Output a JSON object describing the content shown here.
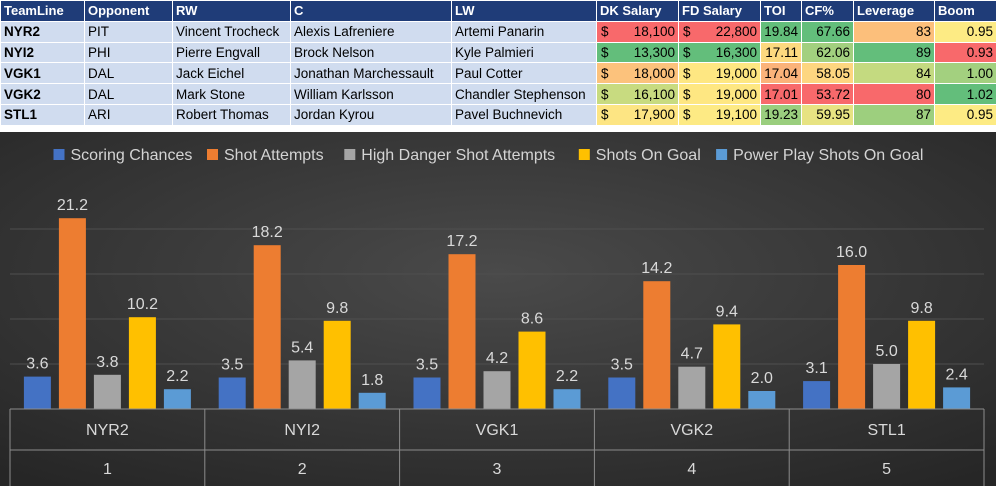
{
  "table": {
    "headers": [
      "TeamLine",
      "Opponent",
      "RW",
      "C",
      "LW",
      "DK Salary",
      "FD Salary",
      "TOI",
      "CF%",
      "Leverage",
      "Boom"
    ],
    "currency_symbol": "$",
    "rows": [
      {
        "teamline": "NYR2",
        "opponent": "PIT",
        "rw": "Vincent Trocheck",
        "c": "Alexis Lafreniere",
        "lw": "Artemi Panarin",
        "dk": "18,100",
        "fd": "22,800",
        "toi": "19.84",
        "cf": "67.66",
        "leverage": "83",
        "boom": "0.95"
      },
      {
        "teamline": "NYI2",
        "opponent": "PHI",
        "rw": "Pierre Engvall",
        "c": "Brock Nelson",
        "lw": "Kyle Palmieri",
        "dk": "13,300",
        "fd": "16,300",
        "toi": "17.11",
        "cf": "62.06",
        "leverage": "89",
        "boom": "0.93"
      },
      {
        "teamline": "VGK1",
        "opponent": "DAL",
        "rw": "Jack Eichel",
        "c": "Jonathan Marchessault",
        "lw": "Paul Cotter",
        "dk": "18,000",
        "fd": "19,000",
        "toi": "17.04",
        "cf": "58.05",
        "leverage": "84",
        "boom": "1.00"
      },
      {
        "teamline": "VGK2",
        "opponent": "DAL",
        "rw": "Mark Stone",
        "c": "William Karlsson",
        "lw": "Chandler Stephenson",
        "dk": "16,100",
        "fd": "19,000",
        "toi": "17.01",
        "cf": "53.72",
        "leverage": "80",
        "boom": "1.02"
      },
      {
        "teamline": "STL1",
        "opponent": "ARI",
        "rw": "Robert Thomas",
        "c": "Jordan Kyrou",
        "lw": "Pavel Buchnevich",
        "dk": "17,900",
        "fd": "19,100",
        "toi": "19.23",
        "cf": "59.95",
        "leverage": "87",
        "boom": "0.95"
      }
    ],
    "cell_colors": [
      {
        "dk": "#f8696b",
        "fd": "#f8696b",
        "toi": "#63be7b",
        "cf": "#63be7b",
        "leverage": "#fcbf7b",
        "boom": "#fdeb84"
      },
      {
        "dk": "#63be7b",
        "fd": "#63be7b",
        "toi": "#fcd97f",
        "cf": "#a2d07f",
        "leverage": "#63be7b",
        "boom": "#f8696b"
      },
      {
        "dk": "#fcc27c",
        "fd": "#fee782",
        "toi": "#fbb37a",
        "cf": "#fdd680",
        "leverage": "#c4da80",
        "boom": "#a3d07f"
      },
      {
        "dk": "#c8db80",
        "fd": "#fee782",
        "toi": "#f8696b",
        "cf": "#f8696b",
        "leverage": "#f8696b",
        "boom": "#63be7b"
      },
      {
        "dk": "#fde583",
        "fd": "#fdea84",
        "toi": "#9ace7e",
        "cf": "#e7e382",
        "leverage": "#9dcf7e",
        "boom": "#fdeb84"
      }
    ]
  },
  "chart_data": {
    "type": "bar",
    "categories": [
      {
        "line": "NYR2",
        "rank": "1"
      },
      {
        "line": "NYI2",
        "rank": "2"
      },
      {
        "line": "VGK1",
        "rank": "3"
      },
      {
        "line": "VGK2",
        "rank": "4"
      },
      {
        "line": "STL1",
        "rank": "5"
      }
    ],
    "series": [
      {
        "name": "Scoring Chances",
        "color": "#4472c4",
        "values": [
          3.6,
          3.5,
          3.5,
          3.5,
          3.1
        ]
      },
      {
        "name": "Shot Attempts",
        "color": "#ed7d31",
        "values": [
          21.2,
          18.2,
          17.2,
          14.2,
          16.0
        ]
      },
      {
        "name": "High Danger Shot Attempts",
        "color": "#a5a5a5",
        "values": [
          3.8,
          5.4,
          4.2,
          4.7,
          5.0
        ]
      },
      {
        "name": "Shots On Goal",
        "color": "#ffc000",
        "values": [
          10.2,
          9.8,
          8.6,
          9.4,
          9.8
        ]
      },
      {
        "name": "Power Play Shots On Goal",
        "color": "#5b9bd5",
        "values": [
          2.2,
          1.8,
          2.2,
          2.0,
          2.4
        ]
      }
    ],
    "ylim": [
      0,
      25
    ],
    "grid": true,
    "legend_position": "top",
    "background": "#3a3a3a",
    "title": "",
    "xlabel": "",
    "ylabel": ""
  }
}
